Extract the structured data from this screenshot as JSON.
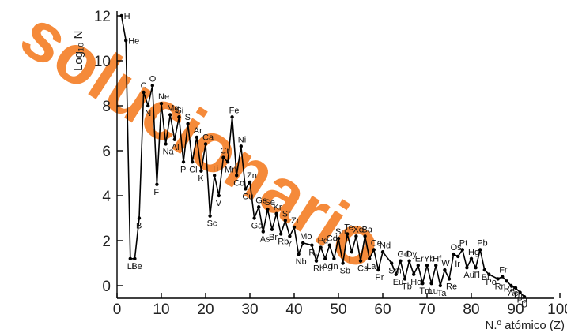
{
  "watermark": {
    "text": "solucionario",
    "color": "#f47a1f"
  },
  "chart_data": {
    "type": "line",
    "title": "",
    "xlabel": "N.º atómico (Z)",
    "ylabel": "Log₁₀ N",
    "xlim": [
      0,
      100
    ],
    "ylim": [
      0,
      12
    ],
    "xticks": [
      0,
      10,
      20,
      30,
      40,
      50,
      60,
      70,
      80,
      90,
      100
    ],
    "yticks": [
      0,
      2,
      4,
      6,
      8,
      10,
      12
    ],
    "grid": false,
    "legend": "none",
    "line_color": "#000000",
    "points": [
      {
        "z": 1,
        "y": 12.0,
        "label": "H"
      },
      {
        "z": 2,
        "y": 10.9,
        "label": "He"
      },
      {
        "z": 3,
        "y": 1.2,
        "label": "Li"
      },
      {
        "z": 4,
        "y": 1.2,
        "label": "Be"
      },
      {
        "z": 5,
        "y": 3.0,
        "label": "B"
      },
      {
        "z": 6,
        "y": 8.6,
        "label": "C"
      },
      {
        "z": 7,
        "y": 8.0,
        "label": "N"
      },
      {
        "z": 8,
        "y": 8.9,
        "label": "O"
      },
      {
        "z": 9,
        "y": 4.5,
        "label": "F"
      },
      {
        "z": 10,
        "y": 8.1,
        "label": "Ne"
      },
      {
        "z": 11,
        "y": 6.3,
        "label": "Na"
      },
      {
        "z": 12,
        "y": 7.6,
        "label": "Mg"
      },
      {
        "z": 13,
        "y": 6.5,
        "label": "Al"
      },
      {
        "z": 14,
        "y": 7.5,
        "label": "Si"
      },
      {
        "z": 15,
        "y": 5.5,
        "label": "P"
      },
      {
        "z": 16,
        "y": 7.2,
        "label": "S"
      },
      {
        "z": 17,
        "y": 5.5,
        "label": "Cl"
      },
      {
        "z": 18,
        "y": 6.6,
        "label": "Ar"
      },
      {
        "z": 19,
        "y": 5.1,
        "label": "K"
      },
      {
        "z": 20,
        "y": 6.3,
        "label": "Ca"
      },
      {
        "z": 21,
        "y": 3.1,
        "label": "Sc"
      },
      {
        "z": 22,
        "y": 4.9,
        "label": "Ti"
      },
      {
        "z": 23,
        "y": 4.0,
        "label": "V"
      },
      {
        "z": 24,
        "y": 5.7,
        "label": "Cr"
      },
      {
        "z": 25,
        "y": 5.5,
        "label": "Mn"
      },
      {
        "z": 26,
        "y": 7.5,
        "label": "Fe"
      },
      {
        "z": 27,
        "y": 4.9,
        "label": "Co"
      },
      {
        "z": 28,
        "y": 6.2,
        "label": "Ni"
      },
      {
        "z": 29,
        "y": 4.3,
        "label": "Cu"
      },
      {
        "z": 30,
        "y": 4.6,
        "label": "Zn"
      },
      {
        "z": 31,
        "y": 3.0,
        "label": "Ga"
      },
      {
        "z": 32,
        "y": 3.5,
        "label": "Ge"
      },
      {
        "z": 33,
        "y": 2.4,
        "label": "As"
      },
      {
        "z": 34,
        "y": 3.4,
        "label": "Se"
      },
      {
        "z": 35,
        "y": 2.5,
        "label": "Br"
      },
      {
        "z": 36,
        "y": 3.2,
        "label": "Kr"
      },
      {
        "z": 37,
        "y": 2.3,
        "label": "Rb"
      },
      {
        "z": 38,
        "y": 2.9,
        "label": "Sr"
      },
      {
        "z": 39,
        "y": 2.2,
        "label": "Y"
      },
      {
        "z": 40,
        "y": 2.6,
        "label": "Zr"
      },
      {
        "z": 41,
        "y": 1.4,
        "label": "Nb"
      },
      {
        "z": 42,
        "y": 1.9,
        "label": "Mo"
      },
      {
        "z": 44,
        "y": 1.8,
        "label": "Ru"
      },
      {
        "z": 45,
        "y": 1.1,
        "label": "Rh"
      },
      {
        "z": 46,
        "y": 1.7,
        "label": "Pd"
      },
      {
        "z": 47,
        "y": 1.2,
        "label": "Ag"
      },
      {
        "z": 48,
        "y": 1.8,
        "label": "Cd"
      },
      {
        "z": 49,
        "y": 1.2,
        "label": "In"
      },
      {
        "z": 50,
        "y": 2.1,
        "label": "Sn"
      },
      {
        "z": 51,
        "y": 1.0,
        "label": "Sb"
      },
      {
        "z": 52,
        "y": 2.3,
        "label": "Te"
      },
      {
        "z": 53,
        "y": 1.5,
        "label": "I"
      },
      {
        "z": 54,
        "y": 2.2,
        "label": "Xe"
      },
      {
        "z": 55,
        "y": 1.1,
        "label": "Cs"
      },
      {
        "z": 56,
        "y": 2.2,
        "label": "Ba"
      },
      {
        "z": 57,
        "y": 1.2,
        "label": "La"
      },
      {
        "z": 58,
        "y": 1.6,
        "label": "Ce"
      },
      {
        "z": 59,
        "y": 0.7,
        "label": "Pr"
      },
      {
        "z": 60,
        "y": 1.5,
        "label": "Nd"
      },
      {
        "z": 62,
        "y": 1.0,
        "label": "Sm"
      },
      {
        "z": 63,
        "y": 0.5,
        "label": "Eu"
      },
      {
        "z": 64,
        "y": 1.1,
        "label": "Gd"
      },
      {
        "z": 65,
        "y": 0.3,
        "label": "Tb"
      },
      {
        "z": 66,
        "y": 1.1,
        "label": "Dy"
      },
      {
        "z": 67,
        "y": 0.5,
        "label": "Ho"
      },
      {
        "z": 68,
        "y": 0.9,
        "label": "Er"
      },
      {
        "z": 69,
        "y": 0.1,
        "label": "Tm"
      },
      {
        "z": 70,
        "y": 0.9,
        "label": "Yb"
      },
      {
        "z": 71,
        "y": 0.1,
        "label": "Lu"
      },
      {
        "z": 72,
        "y": 0.9,
        "label": "Hf"
      },
      {
        "z": 73,
        "y": 0.0,
        "label": "Ta"
      },
      {
        "z": 74,
        "y": 0.7,
        "label": "W"
      },
      {
        "z": 75,
        "y": 0.3,
        "label": "Re"
      },
      {
        "z": 76,
        "y": 1.4,
        "label": "Os"
      },
      {
        "z": 77,
        "y": 1.3,
        "label": "Ir"
      },
      {
        "z": 78,
        "y": 1.6,
        "label": "Pt"
      },
      {
        "z": 79,
        "y": 0.8,
        "label": "Au"
      },
      {
        "z": 80,
        "y": 1.2,
        "label": "Hg"
      },
      {
        "z": 81,
        "y": 0.8,
        "label": "Tl"
      },
      {
        "z": 82,
        "y": 1.6,
        "label": "Pb"
      },
      {
        "z": 83,
        "y": 0.7,
        "label": "Bi"
      },
      {
        "z": 84,
        "y": 0.5,
        "label": "Po"
      },
      {
        "z": 86,
        "y": 0.3,
        "label": "Rn"
      },
      {
        "z": 87,
        "y": 0.4,
        "label": "Fr"
      },
      {
        "z": 88,
        "y": 0.2,
        "label": "Ra"
      },
      {
        "z": 89,
        "y": 0.0,
        "label": "Ac"
      },
      {
        "z": 90,
        "y": -0.1,
        "label": "Th"
      },
      {
        "z": 91,
        "y": -0.3,
        "label": "Pa"
      },
      {
        "z": 92,
        "y": -0.5,
        "label": "U"
      }
    ]
  }
}
